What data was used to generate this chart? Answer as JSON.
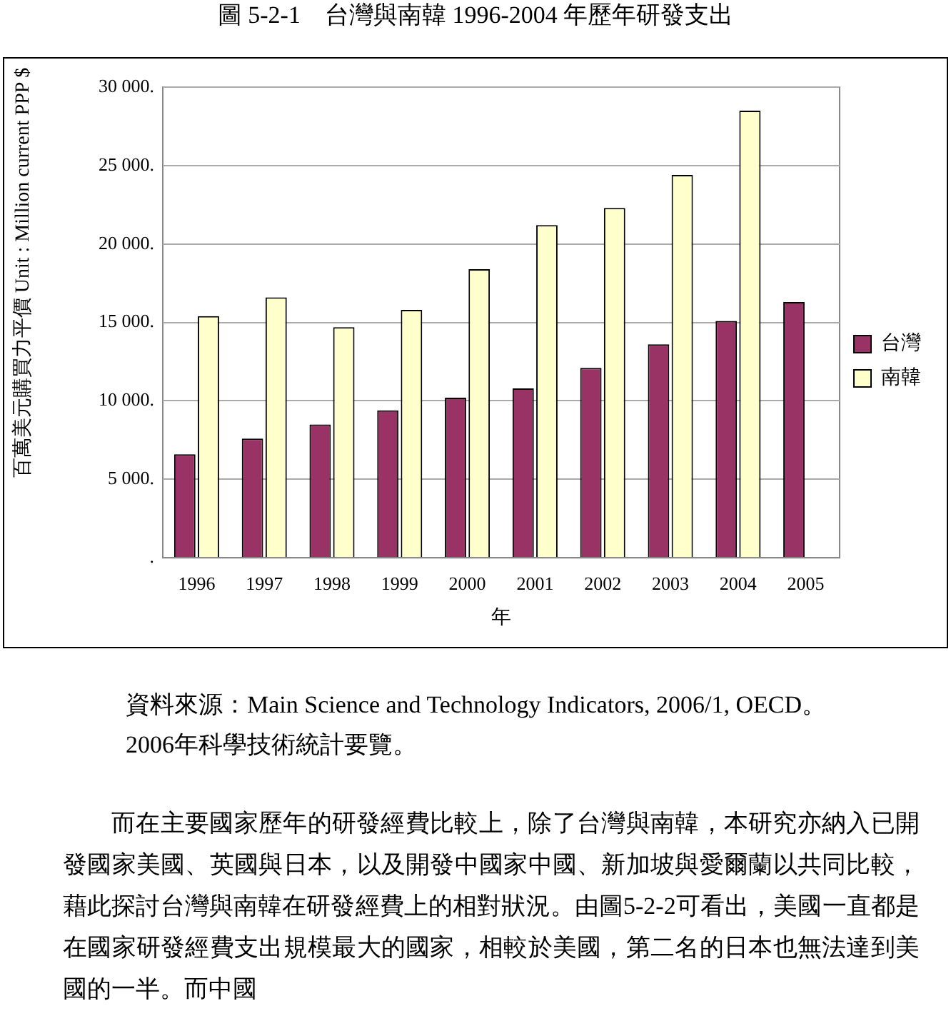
{
  "chart_data": {
    "type": "bar",
    "title": "圖 5-2-1　台灣與南韓 1996-2004 年歷年研發支出",
    "xlabel": "年",
    "ylabel": "百萬美元購買力平價 Unit : Million current PPP $",
    "categories": [
      "1996",
      "1997",
      "1998",
      "1999",
      "2000",
      "2001",
      "2002",
      "2003",
      "2004",
      "2005"
    ],
    "series": [
      {
        "name": "台灣",
        "color": "#993366",
        "values": [
          6600,
          7600,
          8500,
          9400,
          10200,
          10800,
          12100,
          13600,
          15100,
          16300
        ]
      },
      {
        "name": "南韓",
        "color": "#ffffcc",
        "values": [
          15400,
          16600,
          14700,
          15800,
          18400,
          21200,
          22300,
          24400,
          28500,
          null
        ]
      }
    ],
    "ylim": [
      0,
      30000
    ],
    "yticks": [
      {
        "value": 0,
        "label": "."
      },
      {
        "value": 5000,
        "label": "5 000."
      },
      {
        "value": 10000,
        "label": "10 000."
      },
      {
        "value": 15000,
        "label": "15 000."
      },
      {
        "value": 20000,
        "label": "20 000."
      },
      {
        "value": 25000,
        "label": "25 000."
      },
      {
        "value": 30000,
        "label": "30 000."
      }
    ],
    "grid": "y",
    "legend": "right",
    "annotations": [
      "資料來源：Main Science and Technology Indicators, 2006/1, OECD。2006年科學技術統計要覽。",
      "而在主要國家歷年的研發經費比較上，除了台灣與南韓，本研究亦納入已開發國家美國、英國與日本，以及開發中國家中國、新加坡與愛爾蘭以共同比較，藉此探討台灣與南韓在研發經費上的相對狀況。由圖5-2-2可看出，美國一直都是在國家研發經費支出規模最大的國家，相較於美國，第二名的日本也無法達到美國的一半。而中國"
    ]
  }
}
